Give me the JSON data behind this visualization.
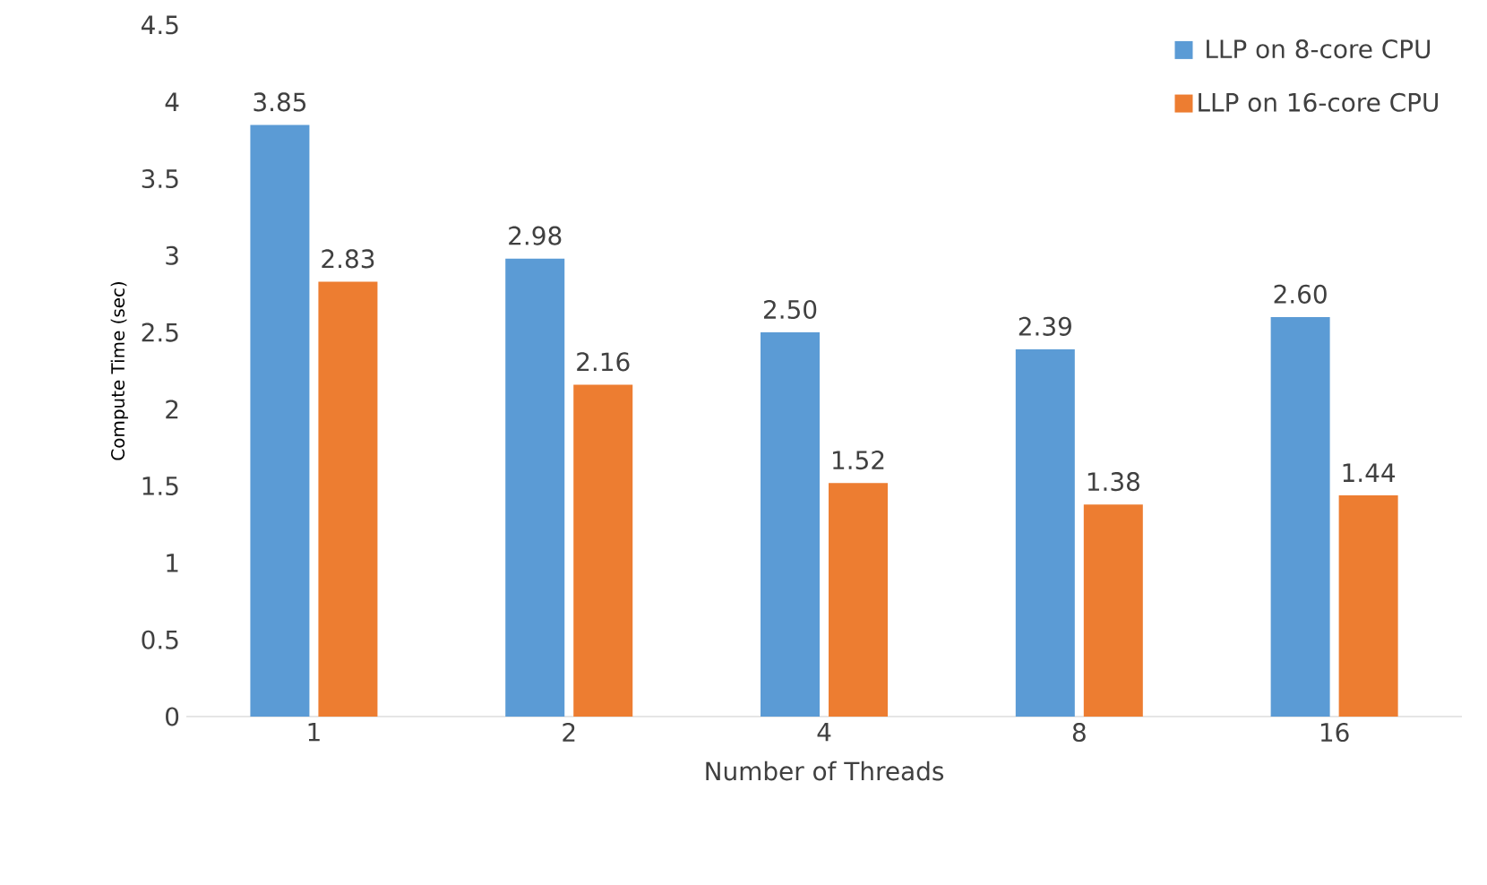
{
  "chart_data": {
    "type": "bar",
    "xlabel": "Number of Threads",
    "ylabel": "Compute Time (sec)",
    "categories": [
      "1",
      "2",
      "4",
      "8",
      "16"
    ],
    "ylim": [
      0,
      4.5
    ],
    "yticks": [
      0,
      0.5,
      1,
      1.5,
      2,
      2.5,
      3,
      3.5,
      4,
      4.5
    ],
    "legend": "top right",
    "series": [
      {
        "name": "LLP on 8-core CPU",
        "color": "#5b9bd5",
        "values": [
          3.85,
          2.98,
          2.5,
          2.39,
          2.6
        ],
        "value_labels": [
          "3.85",
          "2.98",
          "2.50",
          "2.39",
          "2.60"
        ]
      },
      {
        "name": "LLP on 16-core CPU",
        "color": "#ed7d31",
        "values": [
          2.83,
          2.16,
          1.52,
          1.38,
          1.44
        ],
        "value_labels": [
          "2.83",
          "2.16",
          "1.52",
          "1.38",
          "1.44"
        ]
      }
    ]
  }
}
